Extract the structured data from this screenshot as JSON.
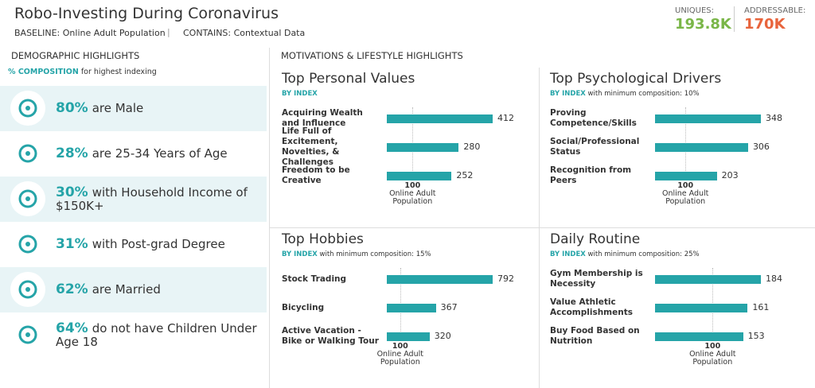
{
  "header": {
    "title": "Robo-Investing During Coronavirus",
    "baseline": "BASELINE: Online Adult Population",
    "contains": "CONTAINS: Contextual Data",
    "uniques": {
      "label": "UNIQUES:",
      "value": "193.8K"
    },
    "addressable": {
      "label": "ADDRESSABLE:",
      "value": "170K"
    }
  },
  "demographics": {
    "title": "DEMOGRAPHIC HIGHLIGHTS",
    "subtitle_key": "% COMPOSITION",
    "subtitle": "for highest indexing",
    "items": [
      {
        "percent": "80%",
        "text": "are Male"
      },
      {
        "percent": "28%",
        "text": "are 25-34 Years of Age"
      },
      {
        "percent": "30%",
        "text": "with Household Income of $150K+"
      },
      {
        "percent": "31%",
        "text": "with Post-grad Degree"
      },
      {
        "percent": "62%",
        "text": "are Married"
      },
      {
        "percent": "64%",
        "text": "do not have Children Under Age 18"
      }
    ]
  },
  "motivations_title": "MOTIVATIONS & LIFESTYLE HIGHLIGHTS",
  "chart_data": [
    {
      "type": "bar",
      "title": "Top Personal Values",
      "subtitle_key": "BY INDEX",
      "color": "#25a4a8",
      "categories": [
        "Acquiring Wealth and Influence",
        "Life Full of Excitement, Novelties, & Challenges",
        "Freedom to be Creative"
      ],
      "values": [
        412,
        280,
        252
      ],
      "xlim": [
        0,
        412
      ],
      "reference": {
        "value": 100,
        "label": "Online Adult Population"
      }
    },
    {
      "type": "bar",
      "title": "Top Psychological Drivers",
      "subtitle_key": "BY INDEX",
      "subtitle": "with minimum composition: 10%",
      "color": "#25a4a8",
      "categories": [
        "Proving Competence/Skills",
        "Social/Professional Status",
        "Recognition from Peers"
      ],
      "values": [
        348,
        306,
        203
      ],
      "xlim": [
        0,
        348
      ],
      "reference": {
        "value": 100,
        "label": "Online Adult Population"
      }
    },
    {
      "type": "bar",
      "title": "Top Hobbies",
      "subtitle_key": "BY INDEX",
      "subtitle": "with minimum composition: 15%",
      "color": "#25a4a8",
      "categories": [
        "Stock Trading",
        "Bicycling",
        "Active Vacation - Bike or Walking Tour"
      ],
      "values": [
        792,
        367,
        320
      ],
      "xlim": [
        0,
        792
      ],
      "reference": {
        "value": 100,
        "label": "Online Adult Population"
      }
    },
    {
      "type": "bar",
      "title": "Daily Routine",
      "subtitle_key": "BY INDEX",
      "subtitle": "with minimum composition: 25%",
      "color": "#25a4a8",
      "categories": [
        "Gym Membership is Necessity",
        "Value Athletic Accomplishments",
        "Buy Food Based on Nutrition"
      ],
      "values": [
        184,
        161,
        153
      ],
      "xlim": [
        0,
        184
      ],
      "reference": {
        "value": 100,
        "label": "Online Adult Population"
      }
    }
  ]
}
